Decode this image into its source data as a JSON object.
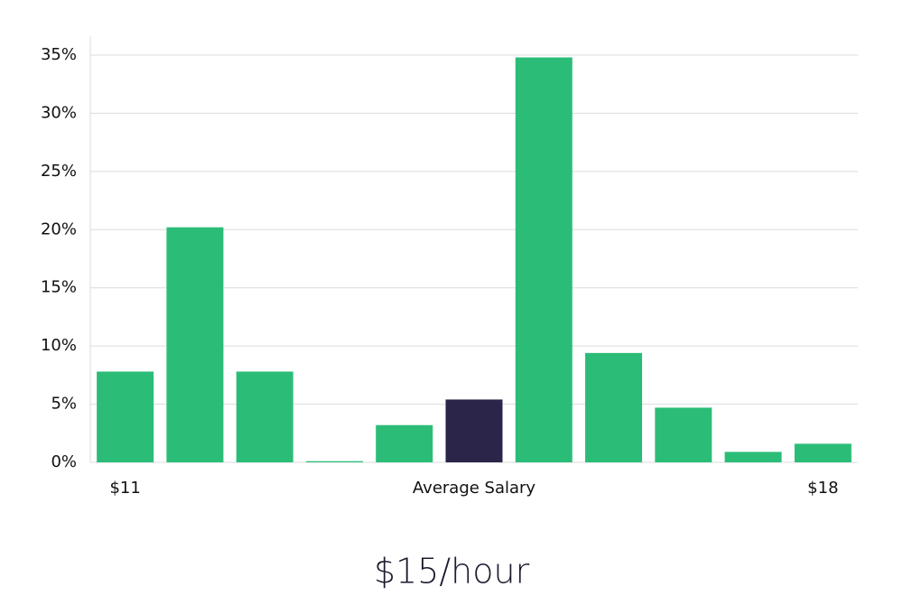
{
  "chart_data": {
    "type": "bar",
    "title": "$15/hour",
    "categories": [
      "$11",
      null,
      null,
      null,
      null,
      "Average Salary",
      null,
      null,
      null,
      null,
      "$18"
    ],
    "values": [
      7.8,
      20.2,
      7.8,
      0.1,
      3.2,
      5.4,
      34.8,
      9.4,
      4.7,
      0.9,
      1.6
    ],
    "colors": [
      "#2bbd77",
      "#2bbd77",
      "#2bbd77",
      "#2bbd77",
      "#2bbd77",
      "#2a2549",
      "#2bbd77",
      "#2bbd77",
      "#2bbd77",
      "#2bbd77",
      "#2bbd77"
    ],
    "ylim": [
      0,
      36.5
    ],
    "yticks": [
      {
        "value": 0,
        "label": "0%"
      },
      {
        "value": 5,
        "label": "5%"
      },
      {
        "value": 10,
        "label": "10%"
      },
      {
        "value": 15,
        "label": "15%"
      },
      {
        "value": 20,
        "label": "20%"
      },
      {
        "value": 25,
        "label": "25%"
      },
      {
        "value": 30,
        "label": "30%"
      },
      {
        "value": 35,
        "label": "35%"
      }
    ],
    "grid": true
  }
}
